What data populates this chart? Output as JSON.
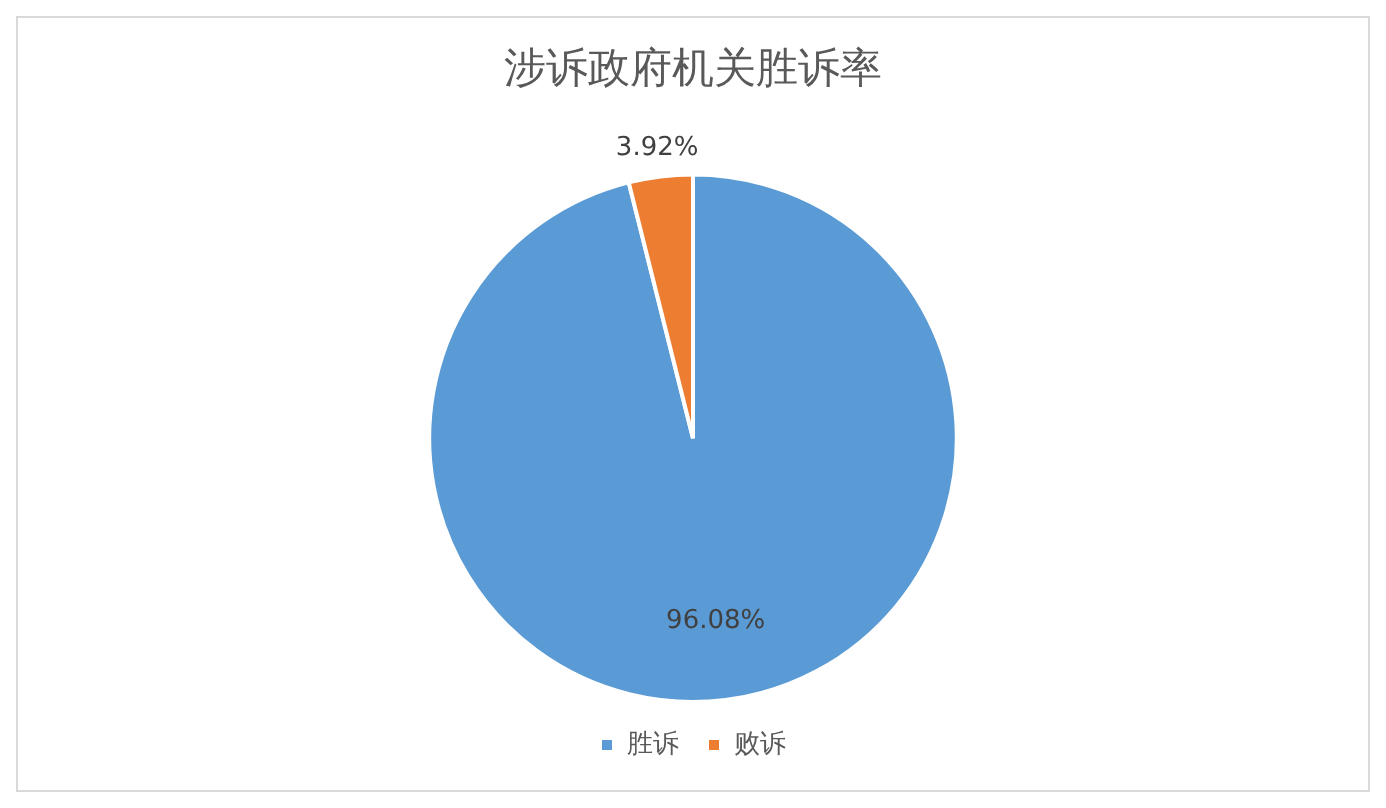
{
  "chart_data": {
    "type": "pie",
    "title": "涉诉政府机关胜诉率",
    "categories": [
      "胜诉",
      "败诉"
    ],
    "values": [
      96.08,
      3.92
    ],
    "colors": [
      "#5b9bd5",
      "#ed7d31"
    ],
    "value_labels": [
      "96.08%",
      "3.92%"
    ],
    "legend": "bottom"
  }
}
